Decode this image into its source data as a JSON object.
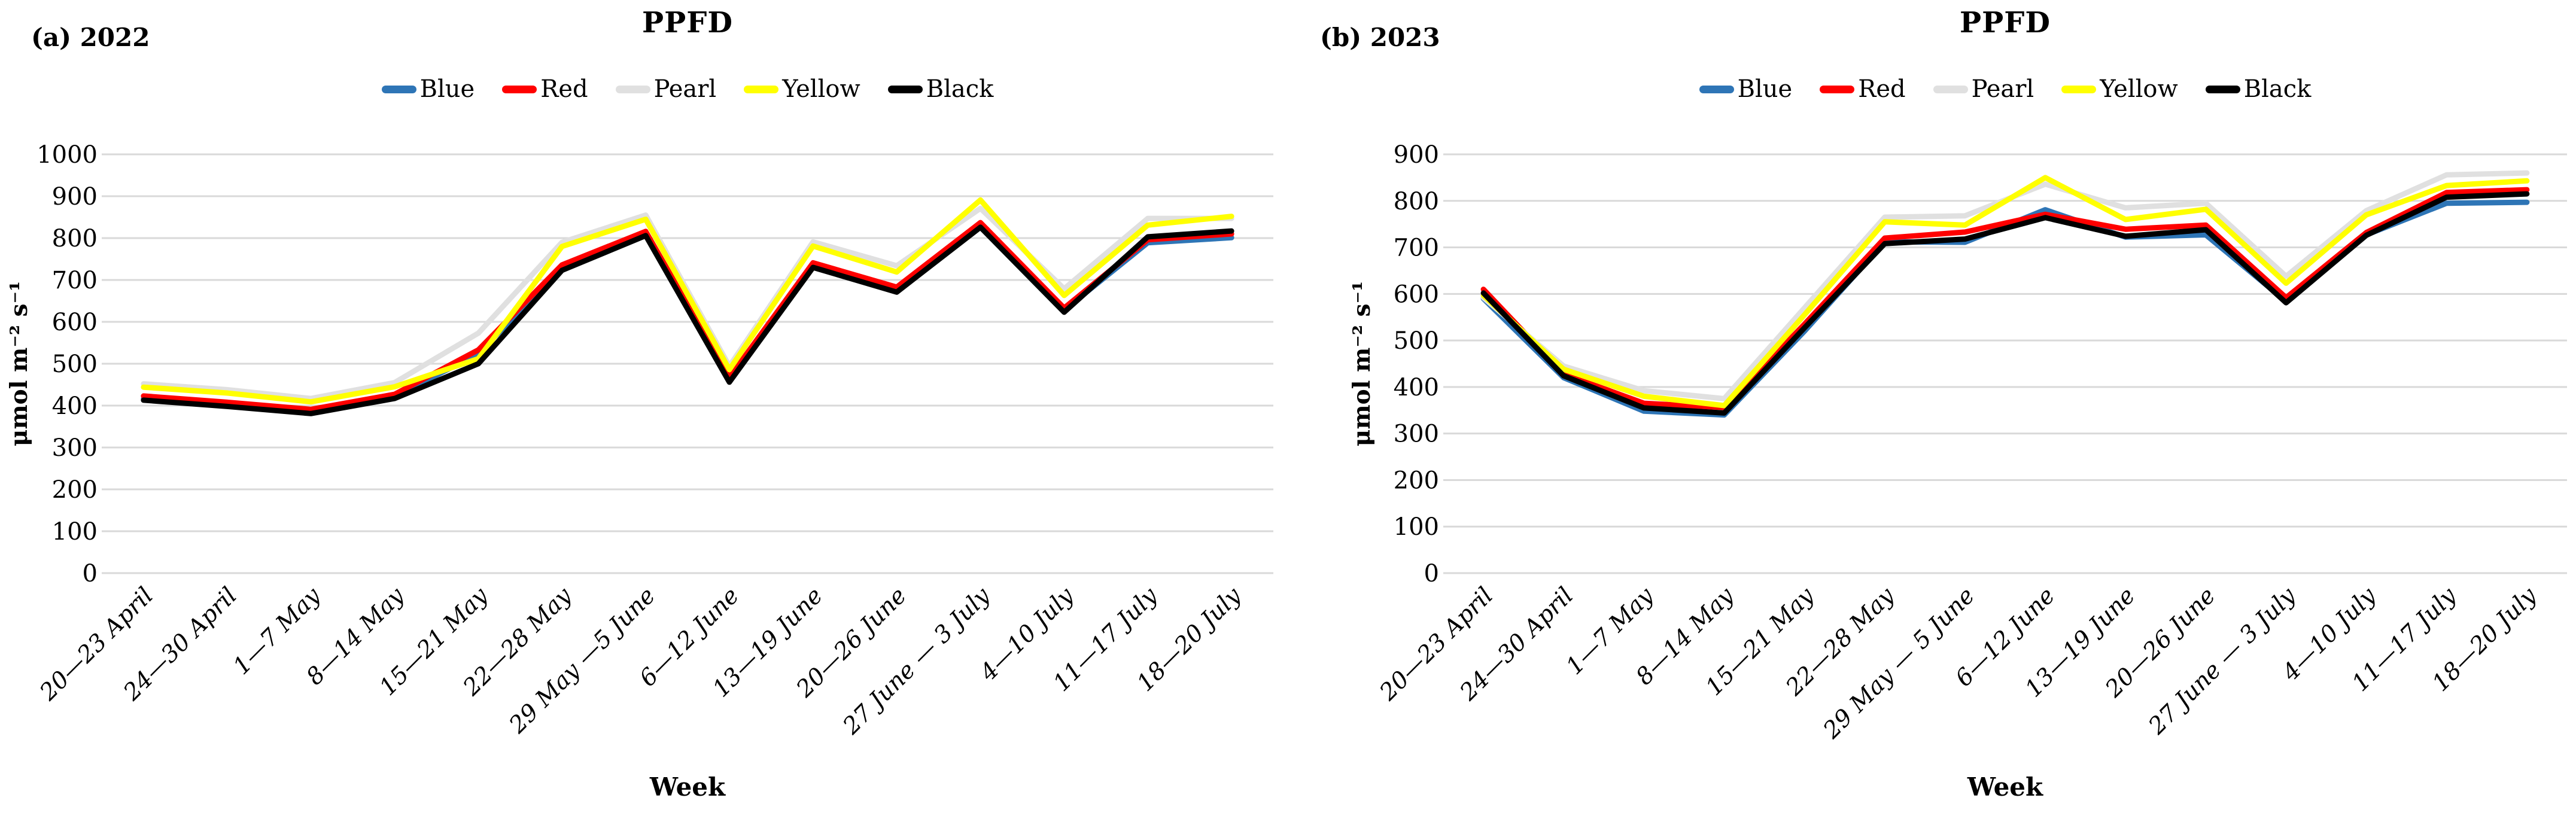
{
  "figure": {
    "background": "#FFFFFF",
    "gridline_color": "#D9D9D9",
    "text_color": "#000000"
  },
  "chart_data": [
    {
      "type": "line",
      "panel_label": "(a) 2022",
      "title": "PPFD",
      "xlabel": "Week",
      "ylabel": "μmol m⁻² s⁻¹",
      "ylim": [
        0,
        1000
      ],
      "ytick_step": 100,
      "grid": true,
      "legend_position": "top",
      "categories": [
        "20—23 April",
        "24—30 April",
        "1—7 May",
        "8—14 May",
        "15—21 May",
        "22—28 May",
        "29 May —5 June",
        "6—12 June",
        "13—19 June",
        "20—26 June",
        "27 June — 3 July",
        "4—10 July",
        "11—17 July",
        "18—20 July"
      ],
      "series": [
        {
          "name": "Blue",
          "color": "#2E75B6",
          "values": [
            417,
            402,
            385,
            421,
            524,
            730,
            810,
            462,
            735,
            678,
            831,
            628,
            789,
            801
          ]
        },
        {
          "name": "Red",
          "color": "#FF0000",
          "values": [
            423,
            408,
            391,
            427,
            533,
            736,
            816,
            467,
            741,
            683,
            837,
            633,
            796,
            810
          ]
        },
        {
          "name": "Pearl",
          "color": "#E0E0E0",
          "values": [
            452,
            438,
            417,
            455,
            573,
            790,
            855,
            494,
            791,
            734,
            871,
            679,
            847,
            847
          ]
        },
        {
          "name": "Yellow",
          "color": "#FFFF00",
          "values": [
            444,
            430,
            409,
            445,
            512,
            780,
            845,
            486,
            781,
            719,
            891,
            663,
            831,
            852
          ]
        },
        {
          "name": "Black",
          "color": "#000000",
          "values": [
            413,
            398,
            381,
            417,
            500,
            723,
            806,
            456,
            730,
            671,
            826,
            623,
            803,
            817
          ]
        }
      ]
    },
    {
      "type": "line",
      "panel_label": "(b) 2023",
      "title": "PPFD",
      "xlabel": "Week",
      "ylabel": "μmol m⁻² s⁻¹",
      "ylim": [
        0,
        900
      ],
      "ytick_step": 100,
      "grid": true,
      "legend_position": "top",
      "categories": [
        "20—23 April",
        "24—30 April",
        "1—7 May",
        "8—14 May",
        "15—21 May",
        "22—28 May",
        "29 May — 5 June",
        "6—12 June",
        "13—19 June",
        "20—26 June",
        "27 June — 3 July",
        "4—10 July",
        "11—17 July",
        "18—20 July"
      ],
      "series": [
        {
          "name": "Blue",
          "color": "#2E75B6",
          "values": [
            590,
            420,
            348,
            340,
            520,
            712,
            711,
            781,
            722,
            727,
            584,
            727,
            795,
            797
          ]
        },
        {
          "name": "Red",
          "color": "#FF0000",
          "values": [
            610,
            428,
            365,
            356,
            535,
            720,
            733,
            771,
            739,
            748,
            592,
            732,
            818,
            824
          ]
        },
        {
          "name": "Pearl",
          "color": "#E0E0E0",
          "values": [
            592,
            445,
            392,
            375,
            570,
            765,
            768,
            836,
            785,
            795,
            638,
            779,
            856,
            860
          ]
        },
        {
          "name": "Yellow",
          "color": "#FFFF00",
          "values": [
            597,
            438,
            380,
            360,
            555,
            755,
            748,
            850,
            760,
            782,
            623,
            770,
            833,
            843
          ]
        },
        {
          "name": "Black",
          "color": "#000000",
          "values": [
            602,
            424,
            355,
            344,
            527,
            708,
            718,
            764,
            724,
            738,
            581,
            726,
            808,
            815
          ]
        }
      ]
    }
  ]
}
